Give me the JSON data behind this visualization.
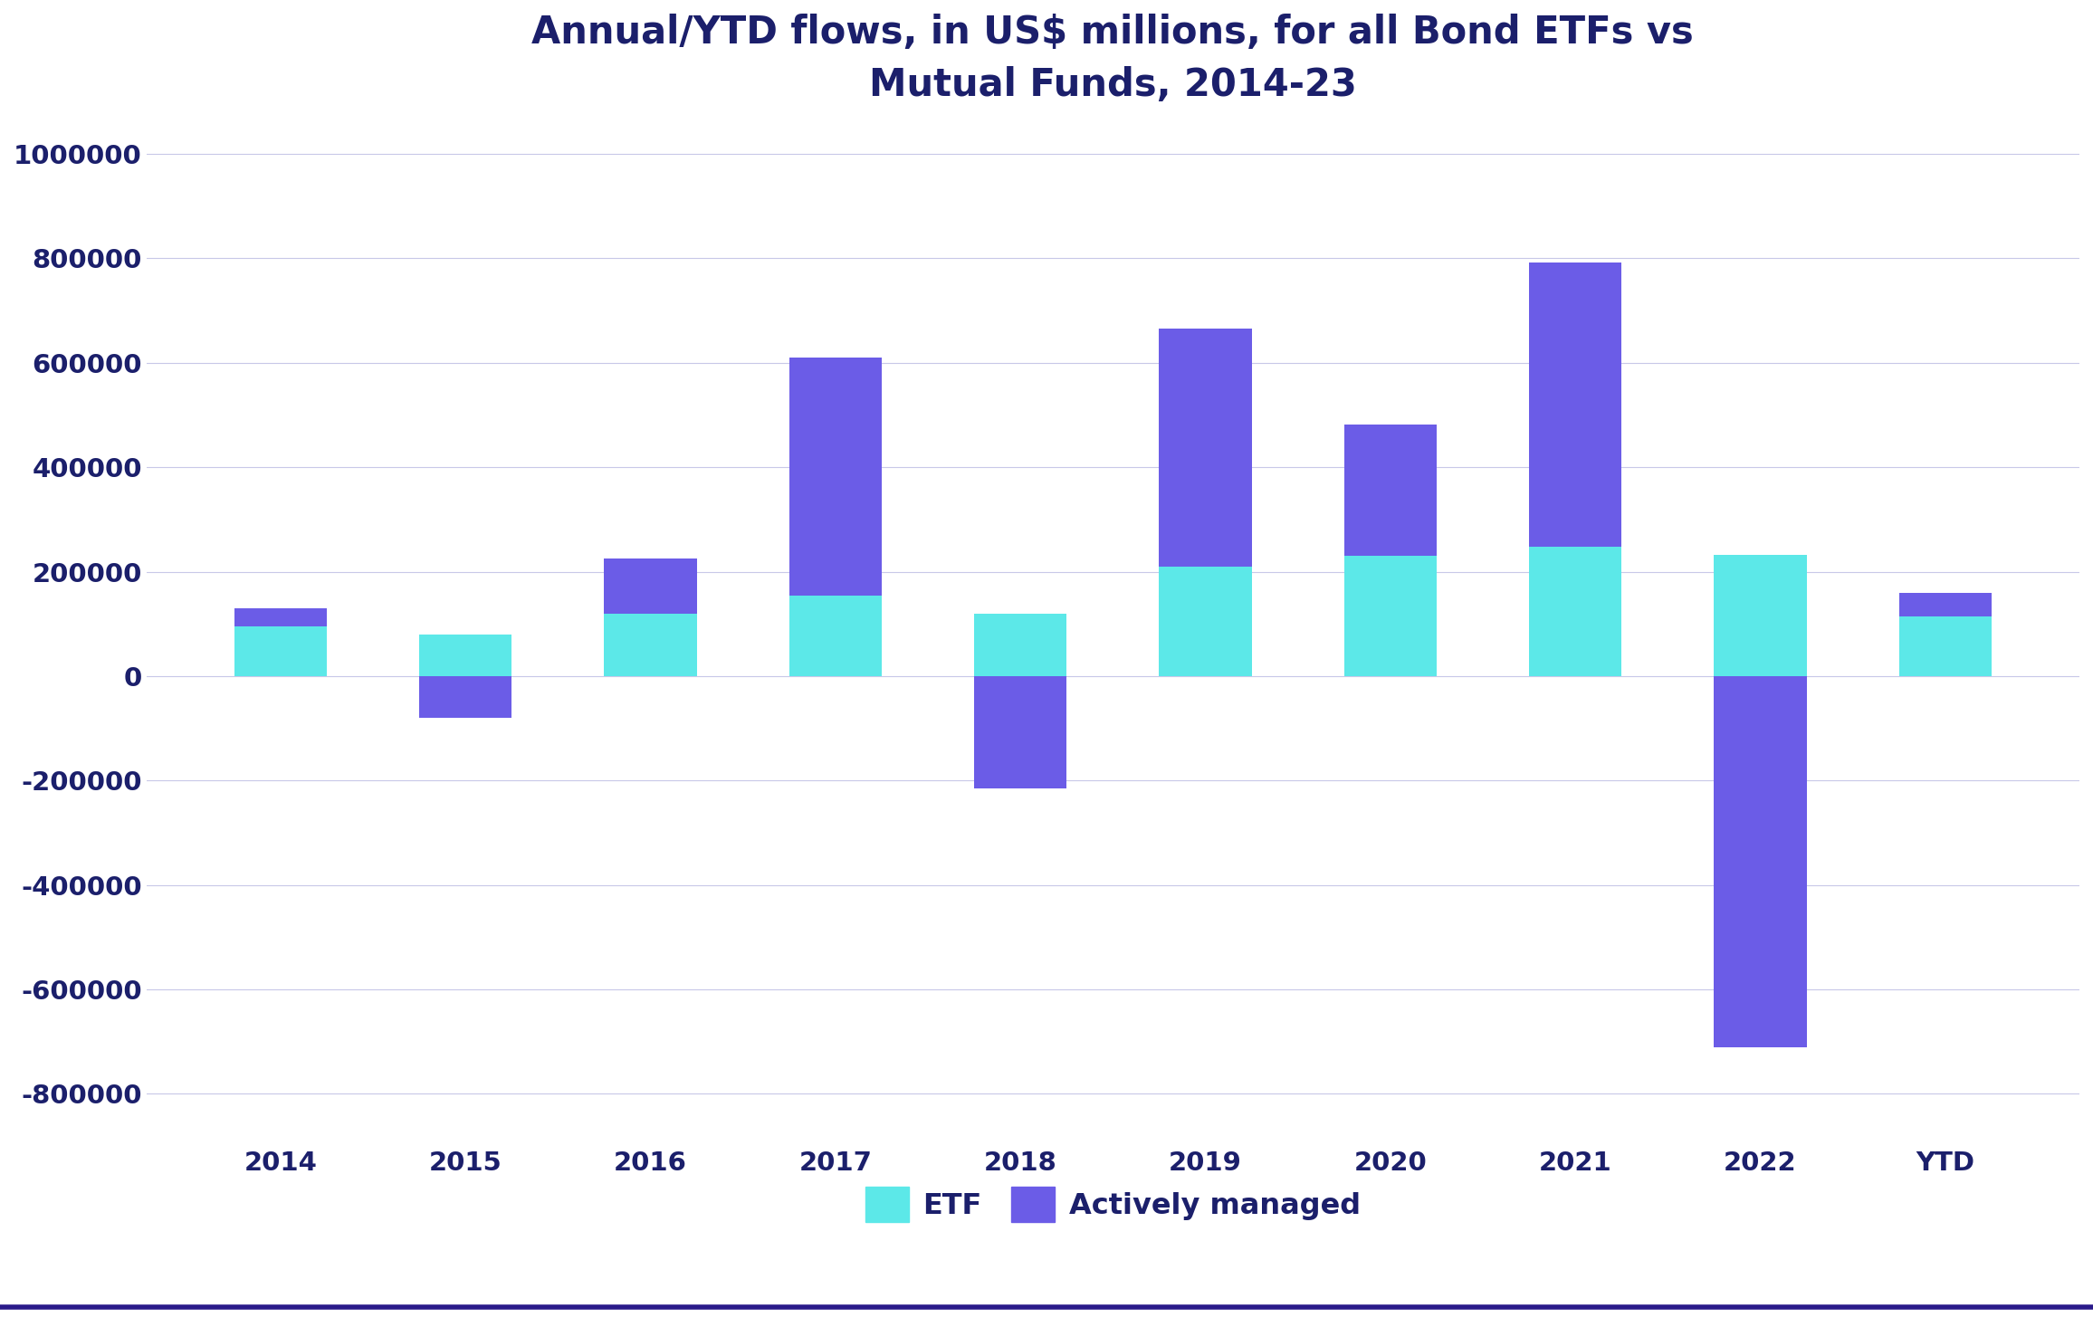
{
  "categories": [
    "2014",
    "2015",
    "2016",
    "2017",
    "2018",
    "2019",
    "2020",
    "2021",
    "2022",
    "YTD"
  ],
  "etf_values": [
    95000,
    80000,
    120000,
    155000,
    120000,
    210000,
    230000,
    247000,
    232000,
    115000
  ],
  "active_values": [
    35000,
    -80000,
    105000,
    455000,
    -215000,
    455000,
    252000,
    545000,
    -710000,
    45000
  ],
  "etf_color": "#5CE8E8",
  "active_color": "#6B5CE7",
  "title": "Annual/YTD flows, in US$ millions, for all Bond ETFs vs\nMutual Funds, 2014-23",
  "title_color": "#1B1F6B",
  "tick_color": "#1B1F6B",
  "grid_color": "#C8C8E8",
  "background_color": "#FFFFFF",
  "ylim_min": -900000,
  "ylim_max": 1050000,
  "yticks": [
    -800000,
    -600000,
    -400000,
    -200000,
    0,
    200000,
    400000,
    600000,
    800000,
    1000000
  ],
  "legend_etf": "ETF",
  "legend_active": "Actively managed",
  "title_fontsize": 30,
  "tick_fontsize": 21,
  "legend_fontsize": 23,
  "bar_width": 0.5,
  "bottom_line_color": "#2A1A8A"
}
